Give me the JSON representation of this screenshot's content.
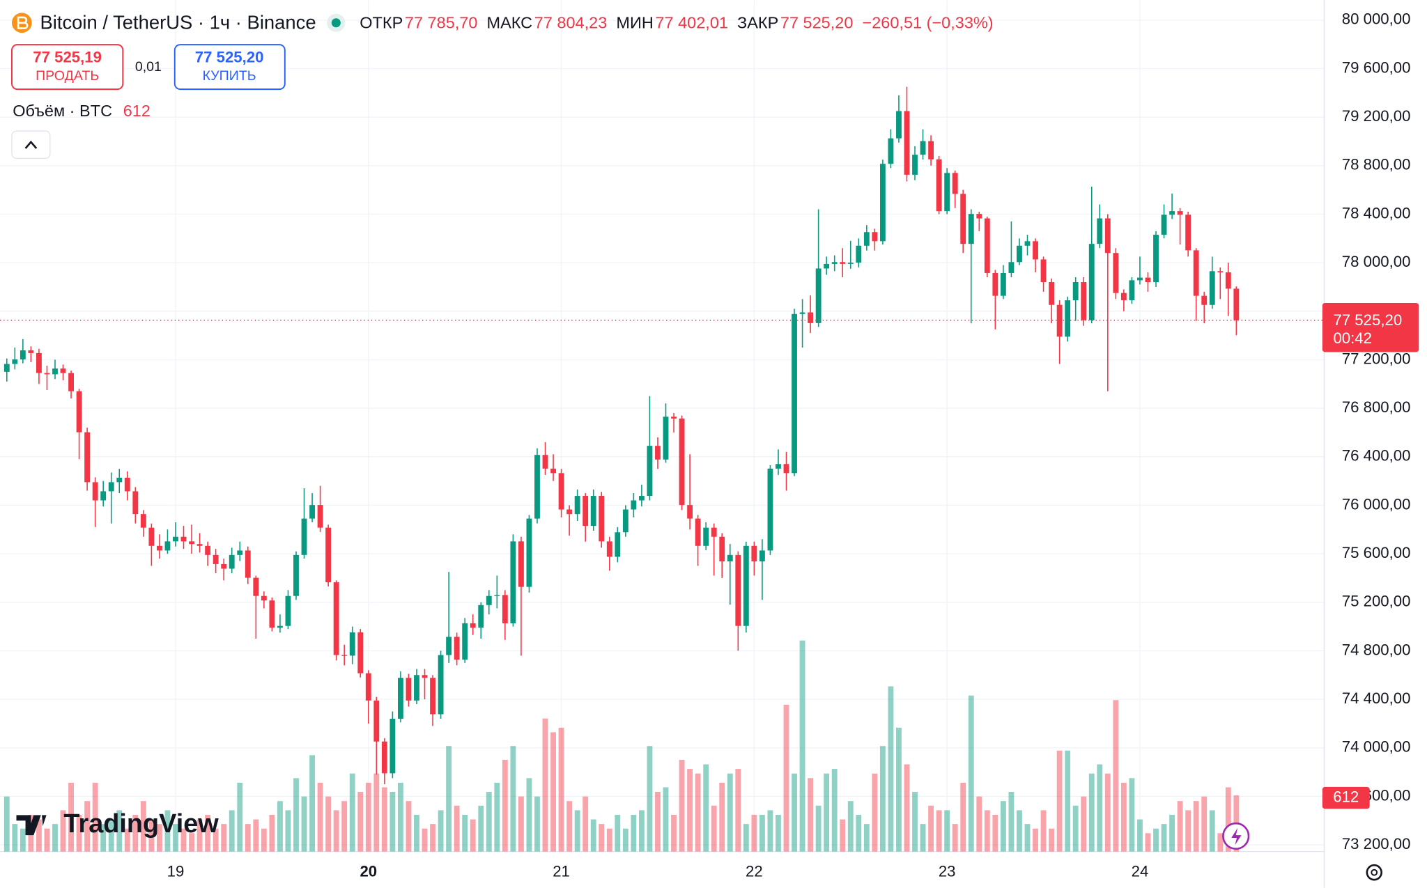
{
  "header": {
    "symbol": "Bitcoin / TetherUS · 1ч · Binance",
    "legend": [
      {
        "label": "ОТКР",
        "value": "77 785,70"
      },
      {
        "label": "МАКС",
        "value": "77 804,23"
      },
      {
        "label": "МИН",
        "value": "77 402,01"
      },
      {
        "label": "ЗАКР",
        "value": "77 525,20"
      }
    ],
    "change": "−260,51 (−0,33%)"
  },
  "trade": {
    "sell_price": "77 525,19",
    "sell_label": "ПРОДАТЬ",
    "spread": "0,01",
    "buy_price": "77 525,20",
    "buy_label": "КУПИТЬ"
  },
  "volume_legend": {
    "label": "Объём · BTC"
  },
  "logo": "TradingView",
  "chart_data": {
    "type": "candlestick",
    "up_color": "#089981",
    "down_color": "#f23645",
    "grid": true,
    "open": [
      77100,
      77165,
      77202,
      77277,
      77255,
      77090,
      77080,
      77127,
      77090,
      76940,
      76602,
      76190,
      76040,
      76115,
      76190,
      76227,
      76115,
      75927,
      75815,
      75665,
      75627,
      75702,
      75740,
      75702,
      75680,
      75665,
      75590,
      75515,
      75477,
      75590,
      75627,
      75402,
      75252,
      75215,
      74990,
      75005,
      75252,
      75590,
      75890,
      76002,
      75815,
      75365,
      74765,
      74760,
      74952,
      74615,
      74390,
      74052,
      73790,
      74240,
      74577,
      74390,
      74600,
      74577,
      74277,
      74765,
      74915,
      74727,
      75027,
      74990,
      75177,
      75252,
      75260,
      75027,
      75702,
      75327,
      75890,
      76415,
      76302,
      76265,
      75965,
      75927,
      76077,
      75830,
      76077,
      75702,
      75575,
      75777,
      75965,
      76040,
      76077,
      76490,
      76377,
      76730,
      76715,
      76002,
      75890,
      75665,
      75815,
      75740,
      75537,
      75590,
      75005,
      75665,
      75537,
      75627,
      76302,
      76340,
      76265,
      77577,
      77590,
      77502,
      77952,
      77990,
      78005,
      77990,
      78000,
      78140,
      78252,
      78177,
      78815,
      79025,
      79250,
      78725,
      78890,
      79002,
      78852,
      78425,
      78740,
      78567,
      78155,
      78402,
      78365,
      77915,
      77727,
      77915,
      78005,
      78140,
      78177,
      78027,
      77840,
      77652,
      77390,
      77690,
      77840,
      77525,
      78155,
      78365,
      78080,
      77750,
      77690,
      77855,
      77877,
      77840,
      78230,
      78395,
      78425,
      78395,
      78102,
      77727,
      77652,
      77930,
      77920,
      77785.7
    ],
    "high": [
      77210,
      77300,
      77370,
      77310,
      77290,
      77150,
      77200,
      77160,
      77110,
      76960,
      76640,
      76230,
      76200,
      76270,
      76300,
      76280,
      76150,
      75960,
      75850,
      75760,
      75800,
      75860,
      75830,
      75840,
      75770,
      75700,
      75640,
      75560,
      75650,
      75700,
      75660,
      75420,
      75290,
      75240,
      75100,
      75300,
      75620,
      76140,
      76100,
      76160,
      75840,
      75380,
      74850,
      75000,
      74980,
      74640,
      74420,
      74080,
      74300,
      74630,
      74610,
      74650,
      74650,
      74600,
      74800,
      75450,
      74950,
      75070,
      75100,
      75200,
      75300,
      75420,
      75300,
      75760,
      75740,
      75920,
      76470,
      76520,
      76420,
      76300,
      76000,
      76130,
      76100,
      76130,
      76110,
      75740,
      75820,
      76000,
      76100,
      76170,
      76900,
      76560,
      76840,
      76760,
      76740,
      76420,
      75920,
      75860,
      75850,
      75770,
      75680,
      75620,
      75700,
      75700,
      75720,
      76330,
      76460,
      76440,
      77620,
      77700,
      77730,
      78440,
      78050,
      78060,
      78120,
      78180,
      78200,
      78310,
      78280,
      78850,
      79100,
      79380,
      79450,
      78960,
      79100,
      79050,
      78880,
      78780,
      78760,
      78600,
      78440,
      78420,
      78380,
      77940,
      77980,
      78340,
      78200,
      78230,
      78200,
      78050,
      77870,
      77690,
      77720,
      77880,
      77880,
      78627,
      78480,
      78400,
      78120,
      77780,
      77880,
      78050,
      77920,
      78260,
      78480,
      78570,
      78450,
      78420,
      78120,
      77760,
      78050,
      77960,
      78000,
      77804.23
    ],
    "low": [
      77020,
      77120,
      77170,
      77180,
      77000,
      76950,
      77040,
      77030,
      76880,
      76380,
      76120,
      75820,
      75990,
      75850,
      76100,
      76040,
      75850,
      75740,
      75500,
      75560,
      75600,
      75660,
      75640,
      75600,
      75610,
      75500,
      75440,
      75380,
      75440,
      75540,
      75350,
      74900,
      75150,
      74960,
      74950,
      74980,
      75220,
      75560,
      75860,
      75780,
      75330,
      74720,
      74680,
      74690,
      74580,
      74200,
      73780,
      73700,
      73750,
      74210,
      74340,
      74360,
      74400,
      74180,
      74240,
      74700,
      74680,
      74700,
      74930,
      74900,
      75100,
      75150,
      74890,
      75000,
      74760,
      75280,
      75850,
      76250,
      76200,
      75900,
      75750,
      75870,
      75700,
      75790,
      75650,
      75460,
      75530,
      75740,
      75900,
      75990,
      76040,
      76300,
      76350,
      76600,
      75960,
      75800,
      75500,
      75630,
      75420,
      75400,
      75180,
      74800,
      74950,
      75420,
      75220,
      75590,
      76250,
      76120,
      76240,
      77300,
      77420,
      77470,
      77900,
      77930,
      77880,
      77950,
      77960,
      78100,
      78100,
      78150,
      78780,
      78990,
      78670,
      78680,
      78850,
      78800,
      78400,
      78400,
      78450,
      78080,
      77500,
      78260,
      77880,
      77450,
      77700,
      77880,
      77980,
      78060,
      77920,
      77760,
      77500,
      77165,
      77350,
      77520,
      77480,
      77500,
      78120,
      76940,
      77700,
      77600,
      77660,
      77820,
      77760,
      77800,
      78200,
      78360,
      78150,
      78050,
      77520,
      77500,
      77620,
      77700,
      77560,
      77402.01
    ],
    "close": [
      77165,
      77202,
      77277,
      77255,
      77090,
      77080,
      77127,
      77090,
      76940,
      76602,
      76190,
      76040,
      76115,
      76190,
      76227,
      76115,
      75927,
      75815,
      75665,
      75627,
      75702,
      75740,
      75702,
      75680,
      75665,
      75590,
      75515,
      75477,
      75590,
      75627,
      75402,
      75252,
      75215,
      74990,
      75005,
      75252,
      75590,
      75890,
      76002,
      75815,
      75365,
      74765,
      74760,
      74952,
      74615,
      74390,
      74052,
      73790,
      74240,
      74577,
      74390,
      74600,
      74577,
      74277,
      74765,
      74915,
      74727,
      75027,
      74990,
      75177,
      75252,
      75260,
      75027,
      75702,
      75327,
      75890,
      76415,
      76302,
      76265,
      75965,
      75927,
      76077,
      75830,
      76077,
      75702,
      75575,
      75777,
      75965,
      76040,
      76077,
      76490,
      76377,
      76730,
      76715,
      76002,
      75890,
      75665,
      75815,
      75740,
      75537,
      75590,
      75005,
      75665,
      75537,
      75627,
      76302,
      76340,
      76265,
      77577,
      77590,
      77502,
      77952,
      77990,
      78005,
      77990,
      78000,
      78140,
      78252,
      78177,
      78815,
      79025,
      79250,
      78725,
      78890,
      79002,
      78852,
      78425,
      78740,
      78567,
      78155,
      78402,
      78365,
      77915,
      77727,
      77915,
      78005,
      78140,
      78177,
      78027,
      77840,
      77652,
      77390,
      77690,
      77840,
      77525,
      78155,
      78365,
      78080,
      77750,
      77690,
      77855,
      77877,
      77840,
      78230,
      78395,
      78425,
      78395,
      78102,
      77727,
      77652,
      77930,
      77920,
      77785.7,
      77525.2
    ],
    "volume": [
      600,
      300,
      250,
      400,
      350,
      250,
      300,
      450,
      750,
      400,
      550,
      750,
      300,
      350,
      450,
      250,
      400,
      550,
      350,
      300,
      450,
      300,
      250,
      200,
      350,
      400,
      250,
      300,
      450,
      750,
      300,
      350,
      250,
      400,
      550,
      450,
      800,
      600,
      1050,
      750,
      600,
      450,
      550,
      850,
      650,
      750,
      850,
      700,
      650,
      750,
      550,
      400,
      250,
      300,
      450,
      1150,
      500,
      400,
      350,
      500,
      650,
      750,
      1000,
      1150,
      600,
      800,
      600,
      1450,
      1300,
      1350,
      550,
      450,
      600,
      350,
      300,
      250,
      400,
      250,
      400,
      450,
      1150,
      650,
      700,
      400,
      1000,
      900,
      850,
      950,
      500,
      750,
      850,
      900,
      300,
      400,
      400,
      450,
      400,
      1600,
      850,
      2300,
      800,
      500,
      850,
      900,
      350,
      550,
      400,
      300,
      850,
      1150,
      1800,
      1350,
      950,
      650,
      300,
      500,
      450,
      450,
      300,
      750,
      1700,
      600,
      450,
      400,
      550,
      650,
      450,
      300,
      250,
      450,
      250,
      1100,
      1100,
      500,
      600,
      850,
      950,
      850,
      1650,
      750,
      800,
      350,
      200,
      250,
      300,
      400,
      550,
      450,
      550,
      600,
      450,
      200,
      700,
      612
    ],
    "ylim": [
      73145,
      80165
    ],
    "yticks": [
      {
        "value": 73200,
        "label": "73 200,00"
      },
      {
        "value": 73600,
        "label": "73 600,00"
      },
      {
        "value": 74000,
        "label": "74 000,00"
      },
      {
        "value": 74400,
        "label": "74 400,00"
      },
      {
        "value": 74800,
        "label": "74 800,00"
      },
      {
        "value": 75200,
        "label": "75 200,00"
      },
      {
        "value": 75600,
        "label": "75 600,00"
      },
      {
        "value": 76000,
        "label": "76 000,00"
      },
      {
        "value": 76400,
        "label": "76 400,00"
      },
      {
        "value": 76800,
        "label": "76 800,00"
      },
      {
        "value": 77200,
        "label": "77 200,00"
      },
      {
        "value": 77600,
        "label": "77 600,00"
      },
      {
        "value": 78000,
        "label": "78 000,00"
      },
      {
        "value": 78400,
        "label": "78 400,00"
      },
      {
        "value": 78800,
        "label": "78 800,00"
      },
      {
        "value": 79200,
        "label": "79 200,00"
      },
      {
        "value": 79600,
        "label": "79 600,00"
      },
      {
        "value": 80000,
        "label": "80 000,00"
      }
    ],
    "xticks": [
      {
        "value": 21,
        "label": "19"
      },
      {
        "value": 45,
        "label": "20"
      },
      {
        "value": 69,
        "label": "21"
      },
      {
        "value": 93,
        "label": "22"
      },
      {
        "value": 117,
        "label": "23"
      },
      {
        "value": 141,
        "label": "24"
      }
    ],
    "last_price": {
      "value": 77525.2,
      "label": "77 525,20"
    },
    "countdown": "00:42"
  }
}
